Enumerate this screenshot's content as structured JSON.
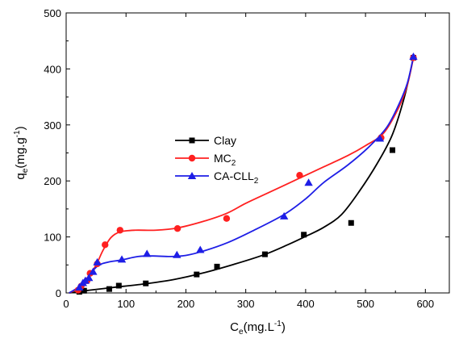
{
  "chart_data": {
    "type": "scatter",
    "title": "",
    "xlabel": {
      "main": "C",
      "sub": "e",
      "rest": "(mg.L",
      "sup": "-1",
      "end": ")"
    },
    "ylabel": {
      "main": "q",
      "sub": "e",
      "rest": "(mg.g",
      "sup": "-1",
      "end": ")"
    },
    "xlim": [
      0,
      640
    ],
    "ylim": [
      0,
      500
    ],
    "xticks": [
      "0",
      "100",
      "200",
      "300",
      "400",
      "500",
      "600"
    ],
    "yticks": [
      "0",
      "100",
      "200",
      "300",
      "400",
      "500"
    ],
    "grid": false,
    "legend_position": "center-left",
    "series": [
      {
        "name": "Clay",
        "name_sub": "",
        "color": "#000000",
        "marker": "square",
        "points": [
          [
            22,
            2
          ],
          [
            30,
            4
          ],
          [
            72,
            7
          ],
          [
            88,
            13
          ],
          [
            133,
            17
          ],
          [
            218,
            33
          ],
          [
            252,
            47
          ],
          [
            332,
            69
          ],
          [
            397,
            104
          ],
          [
            476,
            125
          ],
          [
            545,
            255
          ],
          [
            580,
            420
          ]
        ],
        "curve": [
          [
            5,
            0
          ],
          [
            40,
            5
          ],
          [
            80,
            10
          ],
          [
            130,
            16
          ],
          [
            180,
            24
          ],
          [
            230,
            36
          ],
          [
            280,
            51
          ],
          [
            330,
            68
          ],
          [
            370,
            86
          ],
          [
            400,
            101
          ],
          [
            430,
            117
          ],
          [
            460,
            140
          ],
          [
            490,
            182
          ],
          [
            520,
            232
          ],
          [
            545,
            283
          ],
          [
            565,
            350
          ],
          [
            580,
            420
          ]
        ]
      },
      {
        "name": "MC",
        "name_sub": "2",
        "color": "#ff2020",
        "marker": "circle",
        "points": [
          [
            20,
            5
          ],
          [
            25,
            12
          ],
          [
            35,
            22
          ],
          [
            40,
            35
          ],
          [
            52,
            52
          ],
          [
            65,
            86
          ],
          [
            90,
            112
          ],
          [
            186,
            115
          ],
          [
            268,
            133
          ],
          [
            390,
            210
          ],
          [
            526,
            277
          ],
          [
            580,
            420
          ]
        ],
        "curve": [
          [
            5,
            0
          ],
          [
            20,
            8
          ],
          [
            35,
            25
          ],
          [
            50,
            50
          ],
          [
            62,
            77
          ],
          [
            75,
            99
          ],
          [
            90,
            109
          ],
          [
            115,
            112
          ],
          [
            150,
            112
          ],
          [
            186,
            116
          ],
          [
            230,
            128
          ],
          [
            268,
            142
          ],
          [
            300,
            160
          ],
          [
            340,
            180
          ],
          [
            390,
            205
          ],
          [
            430,
            225
          ],
          [
            470,
            245
          ],
          [
            500,
            263
          ],
          [
            530,
            285
          ],
          [
            555,
            330
          ],
          [
            570,
            372
          ],
          [
            580,
            420
          ]
        ]
      },
      {
        "name": "CA-CLL",
        "name_sub": "2",
        "color": "#1e1ee6",
        "marker": "triangle",
        "points": [
          [
            22,
            10
          ],
          [
            28,
            18
          ],
          [
            32,
            22
          ],
          [
            38,
            27
          ],
          [
            45,
            38
          ],
          [
            52,
            55
          ],
          [
            93,
            60
          ],
          [
            135,
            70
          ],
          [
            185,
            68
          ],
          [
            224,
            77
          ],
          [
            364,
            137
          ],
          [
            405,
            197
          ],
          [
            524,
            276
          ],
          [
            580,
            422
          ]
        ],
        "curve": [
          [
            5,
            0
          ],
          [
            20,
            10
          ],
          [
            35,
            25
          ],
          [
            45,
            40
          ],
          [
            55,
            50
          ],
          [
            70,
            55
          ],
          [
            93,
            59
          ],
          [
            120,
            65
          ],
          [
            145,
            66
          ],
          [
            175,
            65
          ],
          [
            200,
            67
          ],
          [
            230,
            75
          ],
          [
            270,
            90
          ],
          [
            310,
            110
          ],
          [
            364,
            140
          ],
          [
            400,
            168
          ],
          [
            430,
            197
          ],
          [
            470,
            228
          ],
          [
            505,
            260
          ],
          [
            535,
            295
          ],
          [
            555,
            335
          ],
          [
            570,
            375
          ],
          [
            580,
            422
          ]
        ]
      }
    ]
  }
}
